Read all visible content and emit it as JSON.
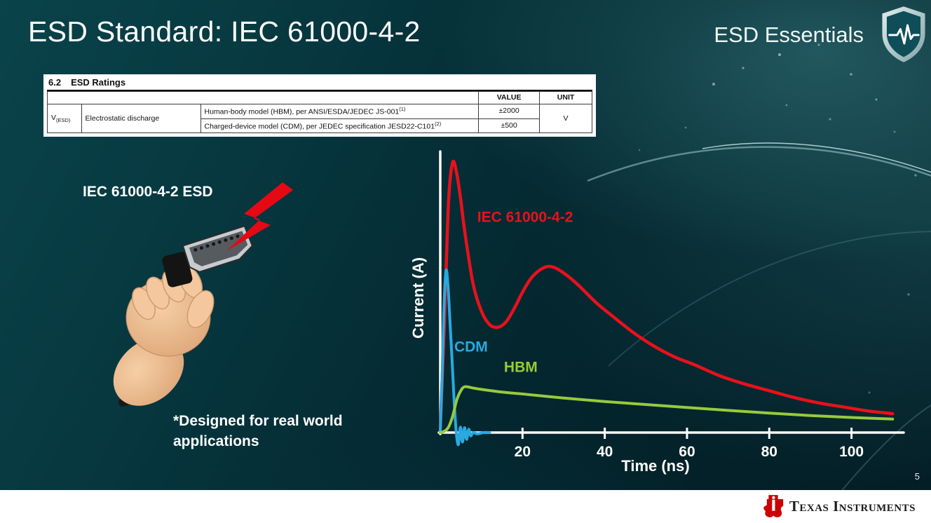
{
  "slide": {
    "title": "ESD Standard: IEC 61000-4-2",
    "series_brand": "ESD Essentials",
    "page_number": "5"
  },
  "ratings_table": {
    "section_number": "6.2",
    "section_title": "ESD Ratings",
    "col_value": "VALUE",
    "col_unit": "UNIT",
    "param_symbol": "V",
    "param_symbol_sub": "(ESD)",
    "param_name": "Electrostatic discharge",
    "rows": [
      {
        "model": "Human-body model (HBM), per ANSI/ESDA/JEDEC JS-001",
        "note": "(1)",
        "value": "±2000"
      },
      {
        "model": "Charged-device model (CDM), per JEDEC specification JESD22-C101",
        "note": "(2)",
        "value": "±500"
      }
    ],
    "unit": "V"
  },
  "illustration": {
    "caption": "IEC 61000-4-2 ESD",
    "footnote": "*Designed for real world applications"
  },
  "footer": {
    "logo_text": "Texas Instruments"
  },
  "chart_data": {
    "type": "line",
    "title": "",
    "xlabel": "Time (ns)",
    "ylabel": "Current (A)",
    "xlim": [
      0,
      112
    ],
    "ylim": [
      -0.05,
      1.0
    ],
    "xticks": [
      20,
      40,
      60,
      80,
      100
    ],
    "grid": false,
    "legend": "inline-labels",
    "axis_color": "#ffffff",
    "series": [
      {
        "name": "IEC 61000-4-2",
        "color": "#e8111c",
        "stroke_width": 4.5,
        "label_x": 9,
        "label_y": 0.78,
        "x": [
          0,
          1,
          2,
          3,
          4,
          5,
          6,
          8,
          10,
          12,
          14,
          16,
          18,
          20,
          22,
          24,
          26,
          28,
          31,
          34,
          38,
          42,
          47,
          52,
          57,
          62,
          68,
          74,
          80,
          86,
          92,
          98,
          104,
          110
        ],
        "y": [
          0.02,
          0.4,
          0.85,
          1.0,
          0.96,
          0.86,
          0.74,
          0.55,
          0.45,
          0.4,
          0.39,
          0.41,
          0.46,
          0.52,
          0.57,
          0.6,
          0.615,
          0.61,
          0.58,
          0.54,
          0.48,
          0.43,
          0.37,
          0.32,
          0.28,
          0.25,
          0.21,
          0.18,
          0.155,
          0.13,
          0.11,
          0.095,
          0.08,
          0.07
        ]
      },
      {
        "name": "CDM",
        "color": "#2aa9e0",
        "stroke_width": 4,
        "label_x": 3.4,
        "label_y": 0.3,
        "x": [
          0,
          0.4,
          0.9,
          1.4,
          1.9,
          2.4,
          2.9,
          3.4,
          3.9,
          4.4,
          4.9,
          5.4,
          5.9,
          6.4,
          6.9,
          7.4,
          8,
          9,
          10.5,
          12
        ],
        "y": [
          0,
          0.18,
          0.46,
          0.6,
          0.54,
          0.4,
          0.26,
          0.11,
          0.0,
          -0.045,
          0.02,
          -0.035,
          0.018,
          -0.025,
          0.012,
          -0.012,
          0.0,
          -0.005,
          0.0,
          0.0
        ]
      },
      {
        "name": "HBM",
        "color": "#97ca3d",
        "stroke_width": 4,
        "label_x": 15.5,
        "label_y": 0.225,
        "x": [
          0,
          1,
          2,
          3,
          4,
          5,
          6,
          8,
          10,
          15,
          20,
          30,
          40,
          50,
          60,
          70,
          80,
          90,
          100,
          110
        ],
        "y": [
          0,
          0.005,
          0.02,
          0.06,
          0.12,
          0.155,
          0.17,
          0.165,
          0.16,
          0.15,
          0.143,
          0.128,
          0.115,
          0.104,
          0.093,
          0.082,
          0.072,
          0.063,
          0.056,
          0.05
        ]
      }
    ]
  }
}
